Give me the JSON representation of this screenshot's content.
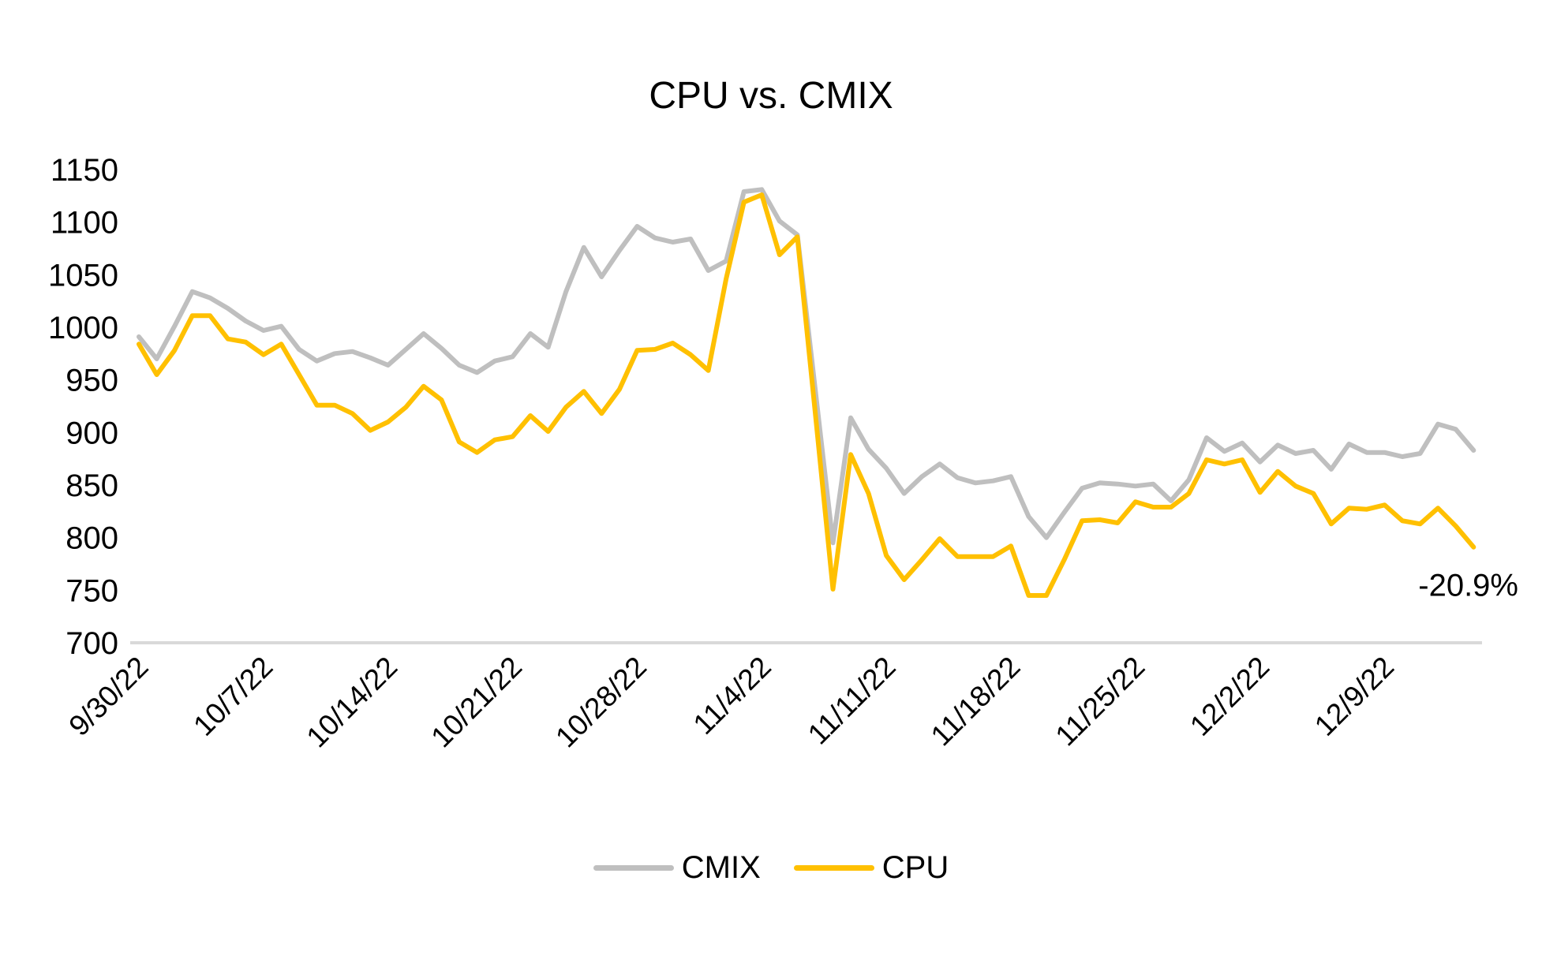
{
  "chart_data": {
    "type": "line",
    "title": "CPU vs. CMIX",
    "xlabel": "",
    "ylabel": "",
    "ylim": [
      700,
      1150
    ],
    "yticks": [
      700,
      750,
      800,
      850,
      900,
      950,
      1000,
      1050,
      1100,
      1150
    ],
    "x_tick_labels": [
      "9/30/22",
      "10/7/22",
      "10/14/22",
      "10/21/22",
      "10/28/22",
      "11/4/22",
      "11/11/22",
      "11/18/22",
      "11/25/22",
      "12/2/22",
      "12/9/22"
    ],
    "x_start": "9/30/22",
    "x_end": "12/14/22",
    "x_frequency": "daily",
    "grid": false,
    "legend_position": "bottom",
    "series": [
      {
        "name": "CMIX",
        "color": "#BFBFBF",
        "values": [
          991,
          970,
          1001,
          1034,
          1028,
          1018,
          1006,
          997,
          1001,
          979,
          968,
          975,
          977,
          971,
          964,
          979,
          994,
          980,
          964,
          957,
          968,
          972,
          994,
          981,
          1034,
          1076,
          1048,
          1073,
          1096,
          1085,
          1081,
          1084,
          1054,
          1063,
          1129,
          1131,
          1101,
          1088,
          942,
          795,
          914,
          884,
          866,
          842,
          858,
          870,
          857,
          852,
          854,
          858,
          820,
          800,
          824,
          847,
          852,
          851,
          849,
          851,
          835,
          855,
          895,
          882,
          890,
          872,
          888,
          880,
          883,
          865,
          889,
          881,
          881,
          877,
          880,
          908,
          903,
          883
        ]
      },
      {
        "name": "CPU",
        "color": "#FFC000",
        "values": [
          984,
          955,
          978,
          1011,
          1011,
          989,
          986,
          974,
          984,
          955,
          926,
          926,
          918,
          902,
          910,
          924,
          944,
          931,
          891,
          881,
          893,
          896,
          916,
          901,
          924,
          939,
          918,
          941,
          978,
          979,
          985,
          974,
          959,
          1046,
          1119,
          1126,
          1069,
          1086,
          920,
          751,
          879,
          842,
          783,
          760,
          779,
          799,
          782,
          782,
          782,
          792,
          745,
          745,
          779,
          816,
          817,
          814,
          834,
          829,
          829,
          842,
          874,
          870,
          874,
          843,
          863,
          849,
          842,
          813,
          828,
          827,
          831,
          816,
          813,
          828,
          811,
          791
        ]
      }
    ],
    "annotations": [
      {
        "text": "-20.9%",
        "series": "CPU",
        "point": "last"
      }
    ]
  },
  "legend": {
    "items": [
      {
        "label": "CMIX",
        "color": "#BFBFBF"
      },
      {
        "label": "CPU",
        "color": "#FFC000"
      }
    ]
  },
  "axis_color": "#D9D9D9"
}
